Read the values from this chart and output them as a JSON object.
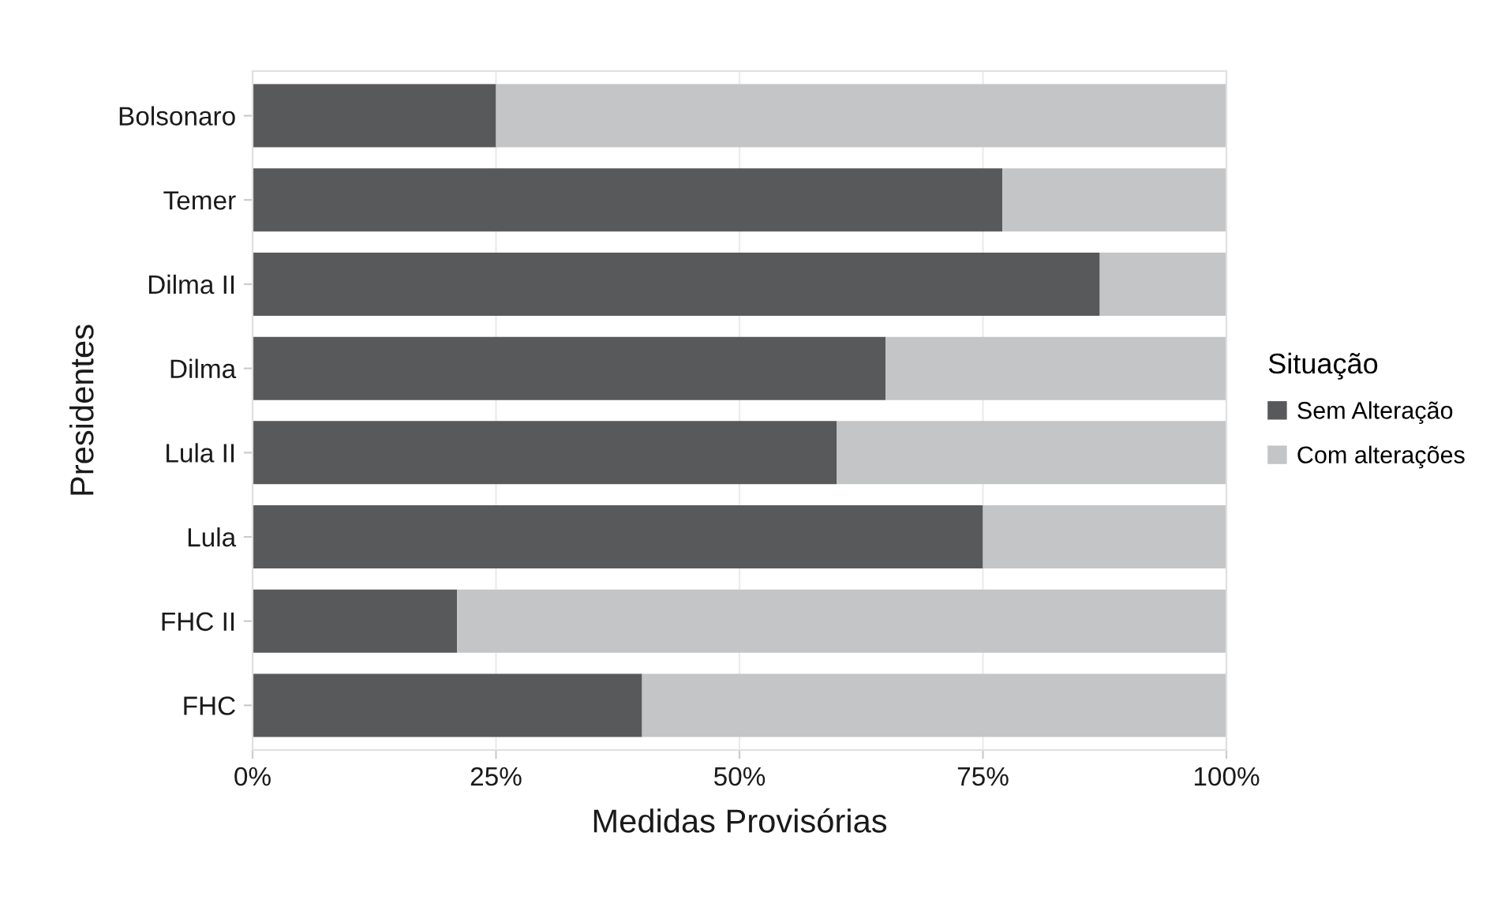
{
  "chart_data": {
    "type": "bar",
    "orientation": "horizontal",
    "stacked": true,
    "categories": [
      "Bolsonaro",
      "Temer",
      "Dilma II",
      "Dilma",
      "Lula II",
      "Lula",
      "FHC II",
      "FHC"
    ],
    "series": [
      {
        "name": "Sem Alteração",
        "color": "#58595b",
        "values": [
          25,
          77,
          87,
          65,
          60,
          75,
          21,
          40
        ]
      },
      {
        "name": "Com alterações",
        "color": "#c4c5c7",
        "values": [
          75,
          23,
          13,
          35,
          40,
          25,
          79,
          60
        ]
      }
    ],
    "xlabel": "Medidas Provisórias",
    "ylabel": "Presidentes",
    "legend_title": "Situação",
    "xlim": [
      0,
      100
    ],
    "xticks": [
      {
        "value": 0,
        "label": "0%"
      },
      {
        "value": 25,
        "label": "25%"
      },
      {
        "value": 50,
        "label": "50%"
      },
      {
        "value": 75,
        "label": "75%"
      },
      {
        "value": 100,
        "label": "100%"
      }
    ],
    "grid": "x",
    "legend": "right"
  }
}
